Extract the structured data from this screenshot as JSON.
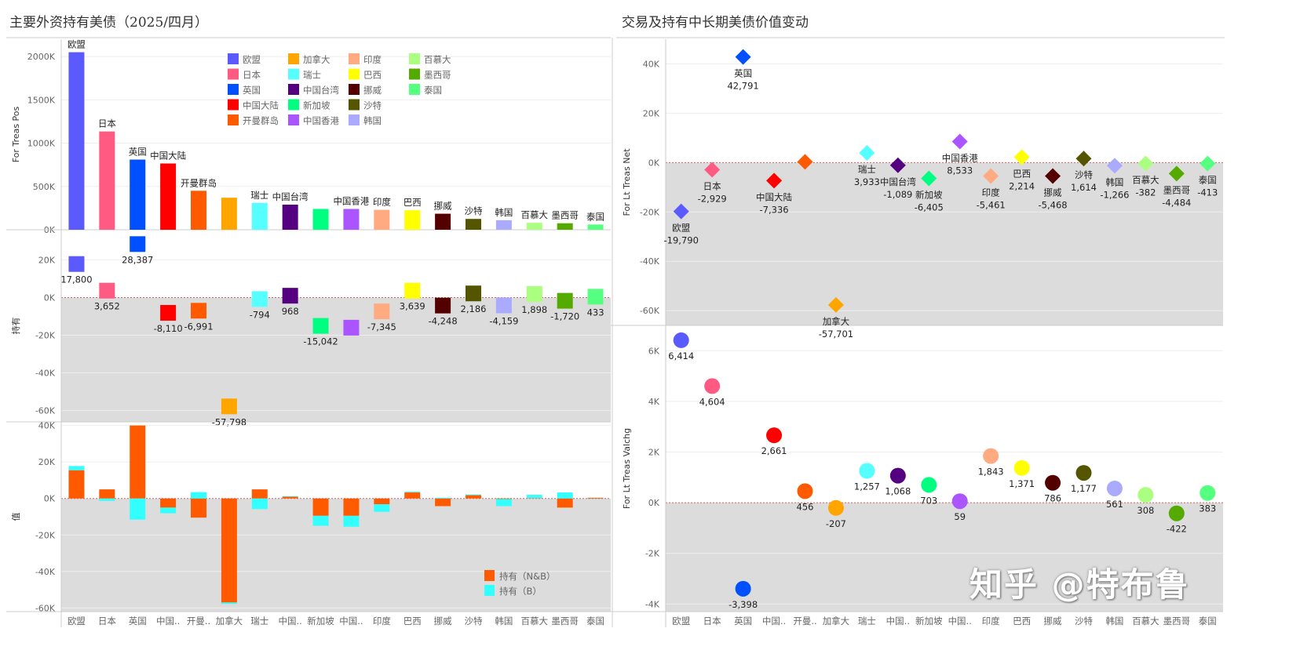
{
  "left_title": "主要外资持有美债（2025/四月）",
  "right_title": "交易及持有中长期美债价值变动",
  "watermark": "知乎 @特布鲁",
  "countries": [
    "欧盟",
    "日本",
    "英国",
    "中国大陆",
    "开曼群岛",
    "加拿大",
    "瑞士",
    "中国台湾",
    "新加坡",
    "中国香港",
    "印度",
    "巴西",
    "挪威",
    "沙特",
    "韩国",
    "百慕大",
    "墨西哥",
    "泰国"
  ],
  "colors": [
    "#5a5aff",
    "#ff5a82",
    "#0050ff",
    "#ff0000",
    "#ff5a00",
    "#ffa500",
    "#55ffff",
    "#550080",
    "#00ff80",
    "#aa55ff",
    "#ffaa80",
    "#ffff00",
    "#550000",
    "#555500",
    "#aaaaff",
    "#aaff80",
    "#55aa00",
    "#55ff80"
  ],
  "axis_labels": [
    "欧盟",
    "日本",
    "英国",
    "中国..",
    "开曼..",
    "加拿大",
    "瑞士",
    "中国..",
    "新加坡",
    "中国..",
    "印度",
    "巴西",
    "挪威",
    "沙特",
    "韩国",
    "百慕大",
    "墨西哥",
    "泰国"
  ],
  "chart_data": [
    {
      "type": "bar",
      "ylabel": "For Treas Pos",
      "yticks": [
        "0K",
        "500K",
        "1000K",
        "1500K",
        "2000K"
      ],
      "ylim": [
        0,
        2200
      ],
      "unit": "K",
      "values": [
        2050,
        1135,
        810,
        765,
        450,
        370,
        310,
        290,
        240,
        240,
        230,
        225,
        185,
        125,
        110,
        80,
        75,
        60
      ],
      "bar_labels": [
        "欧盟",
        "日本",
        "英国",
        "中国大陆",
        "开曼群岛",
        "",
        "瑞士",
        "中国台湾",
        "",
        "中国香港",
        "印度",
        "巴西",
        "挪威",
        "沙特",
        "韩国",
        "百慕大",
        "墨西哥",
        "泰国"
      ],
      "legend_placement": "top-center"
    },
    {
      "type": "scatter",
      "marker": "square",
      "ylabel": "持有",
      "yticks": [
        "-60K",
        "-40K",
        "-20K",
        "0K",
        "20K"
      ],
      "ylim": [
        -66000,
        36000
      ],
      "values": [
        17800,
        3652,
        28387,
        -8110,
        -6991,
        -57798,
        -794,
        968,
        -15042,
        -16000,
        -7345,
        3639,
        -4248,
        2186,
        -4159,
        1898,
        -1720,
        433
      ],
      "labels": [
        "17,800",
        "3,652",
        "28,387",
        "-8,110",
        "-6,991",
        "-57,798",
        "-794",
        "968",
        "-15,042",
        "",
        "-7,345",
        "3,639",
        "-4,248",
        "2,186",
        "-4,159",
        "1,898",
        "-1,720",
        "433"
      ]
    },
    {
      "type": "bar",
      "stacked": true,
      "ylabel": "值",
      "yticks": [
        "-60K",
        "-40K",
        "-20K",
        "0K",
        "20K",
        "40K"
      ],
      "ylim": [
        -62000,
        42000
      ],
      "series": [
        {
          "name": "持有（N&B）",
          "color": "#ff5a00",
          "values": [
            15500,
            5000,
            40000,
            -5000,
            -10500,
            -57000,
            5000,
            1000,
            -9500,
            -9500,
            -3200,
            3300,
            -4200,
            1800,
            -300,
            200,
            -5000,
            400
          ]
        },
        {
          "name": "持有（B）",
          "color": "#33ffff",
          "values": [
            2300,
            -1300,
            -11600,
            -3100,
            3500,
            -800,
            -5800,
            300,
            -5500,
            -6000,
            -4100,
            400,
            400,
            400,
            -3900,
            1800,
            3300,
            100
          ]
        }
      ],
      "legend_placement": "bottom-right"
    },
    {
      "type": "scatter",
      "marker": "diamond",
      "ylabel": "For Lt Treas Net",
      "yticks": [
        "-60K",
        "-40K",
        "-20K",
        "0K",
        "20K",
        "40K"
      ],
      "ylim": [
        -66000,
        50000
      ],
      "values": [
        -19790,
        -2929,
        42791,
        -7336,
        300,
        -57701,
        3933,
        -1089,
        -6405,
        8533,
        -5461,
        2214,
        -5468,
        1614,
        -1266,
        -382,
        -4484,
        -413
      ],
      "labels": [
        "-19,790",
        "-2,929",
        "42,791",
        "-7,336",
        "",
        "-57,701",
        "3,933",
        "-1,089",
        "-6,405",
        "8,533",
        "-5,461",
        "2,214",
        "-5,468",
        "1,614",
        "-1,266",
        "-382",
        "-4,484",
        "-413"
      ],
      "name_labels": [
        "欧盟",
        "日本",
        "英国",
        "中国大陆",
        "",
        "加拿大",
        "瑞士",
        "中国台湾",
        "新加坡",
        "中国香港",
        "印度",
        "巴西",
        "挪威",
        "沙特",
        "韩国",
        "百慕大",
        "墨西哥",
        "泰国"
      ]
    },
    {
      "type": "scatter",
      "marker": "circle",
      "ylabel": "For Lt Treas Valchg",
      "yticks": [
        "-4K",
        "-2K",
        "0K",
        "2K",
        "4K",
        "6K"
      ],
      "ylim": [
        -4300,
        7000
      ],
      "values": [
        6414,
        4604,
        -3398,
        2661,
        456,
        -207,
        1257,
        1068,
        703,
        59,
        1843,
        1371,
        786,
        1177,
        561,
        308,
        -422,
        383
      ],
      "labels": [
        "6,414",
        "4,604",
        "-3,398",
        "2,661",
        "456",
        "-207",
        "1,257",
        "1,068",
        "703",
        "59",
        "1,843",
        "1,371",
        "786",
        "1,177",
        "561",
        "308",
        "-422",
        "383"
      ]
    }
  ]
}
